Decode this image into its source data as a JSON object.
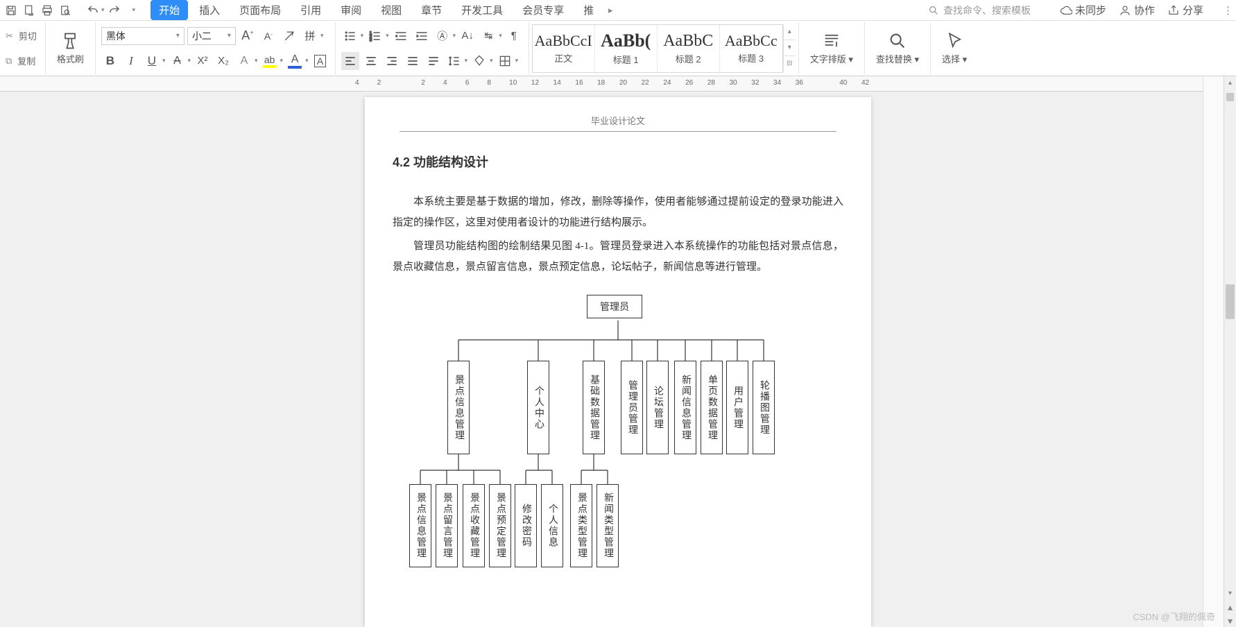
{
  "menubar": {
    "tabs": [
      {
        "label": "开始",
        "active": true
      },
      {
        "label": "插入",
        "active": false
      },
      {
        "label": "页面布局",
        "active": false
      },
      {
        "label": "引用",
        "active": false
      },
      {
        "label": "审阅",
        "active": false
      },
      {
        "label": "视图",
        "active": false
      },
      {
        "label": "章节",
        "active": false
      },
      {
        "label": "开发工具",
        "active": false
      },
      {
        "label": "会员专享",
        "active": false
      },
      {
        "label": "推",
        "active": false
      }
    ],
    "search_placeholder": "查找命令、搜索模板",
    "sync": "未同步",
    "collab": "协作",
    "share": "分享"
  },
  "ribbon": {
    "cut": "剪切",
    "copy": "复制",
    "fmt_paint": "格式刷",
    "font_name": "黑体",
    "font_size": "小二",
    "styles": [
      {
        "preview": "AaBbCcI",
        "name": "正文"
      },
      {
        "preview": "AaBb(",
        "name": "标题 1"
      },
      {
        "preview": "AaBbC",
        "name": "标题 2"
      },
      {
        "preview": "AaBbCc",
        "name": "标题 3"
      }
    ],
    "text_layout": "文字排版",
    "find_replace": "查找替换",
    "select": "选择"
  },
  "ruler": {
    "marks": [
      "4",
      "2",
      "",
      "2",
      "4",
      "6",
      "8",
      "10",
      "12",
      "14",
      "16",
      "18",
      "20",
      "22",
      "24",
      "26",
      "28",
      "30",
      "32",
      "34",
      "36",
      "",
      "40",
      "42"
    ]
  },
  "document": {
    "header": "毕业设计论文",
    "title": "4.2 功能结构设计",
    "para1": "本系统主要是基于数据的增加，修改，删除等操作，使用者能够通过提前设定的登录功能进入指定的操作区，这里对使用者设计的功能进行结构展示。",
    "para2": "管理员功能结构图的绘制结果见图 4-1。管理员登录进入本系统操作的功能包括对景点信息，景点收藏信息，景点留言信息，景点预定信息，论坛帖子，新闻信息等进行管理。"
  },
  "diagram": {
    "root": "管理员",
    "level1": [
      "景点信息管理",
      "个人中心",
      "基础数据管理",
      "管理员管理",
      "论坛管理",
      "新闻信息管理",
      "单页数据管理",
      "用户管理",
      "轮播图管理"
    ],
    "level2_g0": [
      "景点信息管理",
      "景点留言管理",
      "景点收藏管理",
      "景点预定管理"
    ],
    "level2_g1": [
      "修改密码",
      "个人信息"
    ],
    "level2_g2": [
      "景点类型管理",
      "新闻类型管理"
    ]
  },
  "watermark": "CSDN @飞翔的佩奇"
}
